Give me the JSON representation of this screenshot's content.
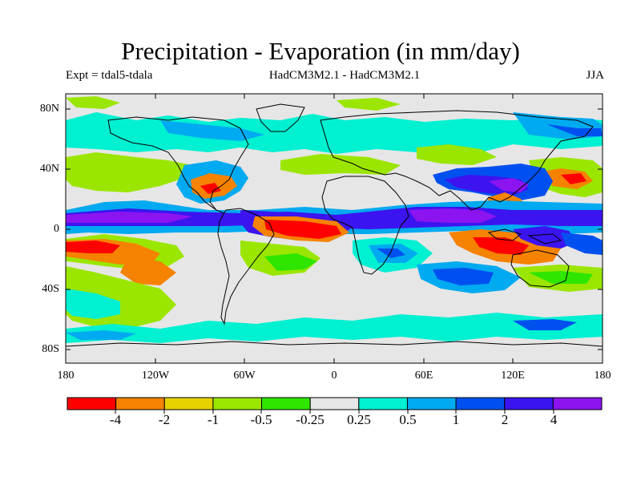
{
  "title": "Precipitation - Evaporation (in mm/day)",
  "subtitle": {
    "left": "Expt = tdal5-tdala",
    "center": "HadCM3M2.1 - HadCM3M2.1",
    "right": "JJA"
  },
  "map": {
    "lat_ticks": [
      "80N",
      "40N",
      "0",
      "40S",
      "80S"
    ],
    "lon_ticks": [
      "180",
      "120W",
      "60W",
      "0",
      "60E",
      "120E",
      "180"
    ]
  },
  "colorbar": {
    "colors": [
      "#ff0000",
      "#f58200",
      "#e6d200",
      "#9be600",
      "#2ee600",
      "#e6e6e6",
      "#00f0d2",
      "#00aaf0",
      "#0050f0",
      "#3c14f0",
      "#8c14f0"
    ],
    "labels": [
      "-4",
      "-2",
      "-1",
      "-0.5",
      "-0.25",
      "0.25",
      "0.5",
      "1",
      "2",
      "4"
    ]
  }
}
